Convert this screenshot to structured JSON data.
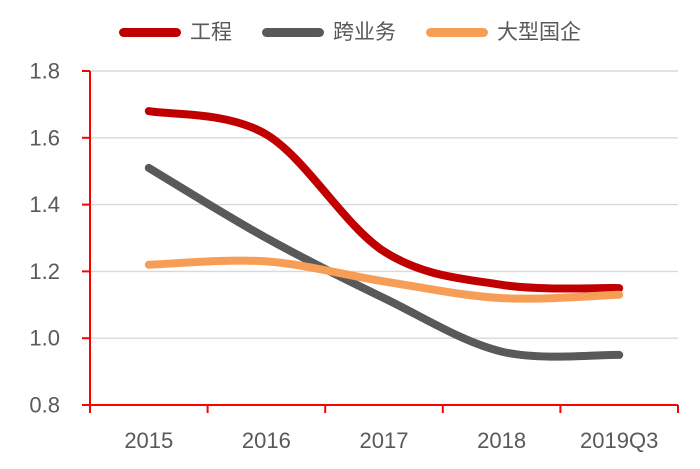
{
  "chart_data": {
    "type": "line",
    "title": "",
    "xlabel": "",
    "ylabel": "",
    "categories": [
      "2015",
      "2016",
      "2017",
      "2018",
      "2019Q3"
    ],
    "series": [
      {
        "name": "工程",
        "color": "#C00000",
        "values": [
          1.68,
          1.61,
          1.26,
          1.16,
          1.15
        ]
      },
      {
        "name": "跨业务",
        "color": "#595959",
        "values": [
          1.51,
          1.3,
          1.12,
          0.96,
          0.95
        ]
      },
      {
        "name": "大型国企",
        "color": "#F79E56",
        "values": [
          1.22,
          1.23,
          1.17,
          1.12,
          1.13
        ]
      }
    ],
    "ylim": [
      0.8,
      1.8
    ],
    "yticks": [
      0.8,
      1.0,
      1.2,
      1.4,
      1.6,
      1.8
    ],
    "ytick_labels": [
      "0.8",
      "1.0",
      "1.2",
      "1.4",
      "1.6",
      "1.8"
    ],
    "grid": true,
    "smooth": true,
    "legend_position": "top",
    "axis_color": "#FF0000",
    "gridline_color": "#D9D9D9",
    "label_color": "#595959"
  }
}
